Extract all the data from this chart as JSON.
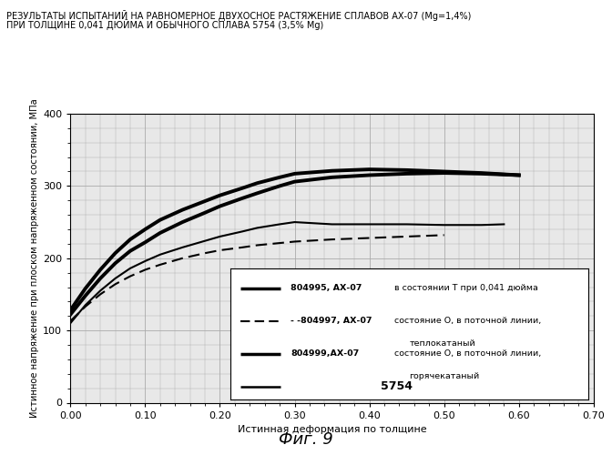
{
  "title_line1": "РЕЗУЛЬТАТЫ ИСПЫТАНИЙ НА РАВНОМЕРНОЕ ДВУХОСНОЕ РАСТЯЖЕНИЕ СПЛАВОВ АХ-07 (Mg=1,4%)",
  "title_line2": "ПРИ ТОЛЩИНЕ 0,041 ДЮЙМА И ОБЫЧНОГО СПЛАВА 5754 (3,5% Mg)",
  "xlabel": "Истинная деформация по толщине",
  "ylabel": "Истинное напряжение при плоском напряженном состоянии, МПа",
  "figcaption": "Фиг. 9",
  "xlim": [
    0.0,
    0.7
  ],
  "ylim": [
    0,
    400
  ],
  "xticks": [
    0.0,
    0.1,
    0.2,
    0.3,
    0.4,
    0.5,
    0.6,
    0.7
  ],
  "yticks": [
    0,
    100,
    200,
    300,
    400
  ],
  "bg_color": "#e8e8e8",
  "grid_color": "#aaaaaa",
  "curve1_x": [
    0.0,
    0.02,
    0.04,
    0.06,
    0.08,
    0.1,
    0.12,
    0.15,
    0.18,
    0.2,
    0.23,
    0.25,
    0.28,
    0.3,
    0.35,
    0.4,
    0.45,
    0.5,
    0.55,
    0.6
  ],
  "curve1_y": [
    122,
    148,
    172,
    193,
    210,
    222,
    235,
    250,
    263,
    272,
    283,
    290,
    300,
    306,
    312,
    315,
    317,
    318,
    317,
    315
  ],
  "curve2_x": [
    0.0,
    0.02,
    0.04,
    0.06,
    0.08,
    0.1,
    0.12,
    0.15,
    0.18,
    0.2,
    0.23,
    0.25,
    0.28,
    0.3,
    0.35,
    0.4,
    0.45,
    0.5
  ],
  "curve2_y": [
    113,
    133,
    150,
    164,
    175,
    184,
    191,
    200,
    207,
    211,
    215,
    218,
    221,
    223,
    226,
    228,
    230,
    232
  ],
  "curve3_x": [
    0.0,
    0.02,
    0.04,
    0.06,
    0.08,
    0.1,
    0.12,
    0.15,
    0.18,
    0.2,
    0.23,
    0.25,
    0.28,
    0.3,
    0.35,
    0.4,
    0.45,
    0.5,
    0.55,
    0.6
  ],
  "curve3_y": [
    128,
    158,
    184,
    207,
    226,
    240,
    253,
    267,
    279,
    287,
    297,
    304,
    312,
    317,
    321,
    323,
    322,
    320,
    318,
    315
  ],
  "curve4_x": [
    0.0,
    0.02,
    0.04,
    0.06,
    0.08,
    0.1,
    0.12,
    0.15,
    0.18,
    0.2,
    0.23,
    0.25,
    0.28,
    0.3,
    0.35,
    0.4,
    0.45,
    0.5,
    0.55,
    0.58
  ],
  "curve4_y": [
    110,
    135,
    155,
    172,
    186,
    196,
    205,
    215,
    224,
    230,
    237,
    242,
    247,
    250,
    247,
    247,
    247,
    246,
    246,
    247
  ],
  "legend_label1": "804995, АХ-07",
  "legend_text1": " в состоянии Т при 0,041 дюйма",
  "legend_label2": "- - -804997, АХ-07",
  "legend_text2": " состояние О, в поточной линии,",
  "legend_text2b": "теплокатаный",
  "legend_label3": "804999,АХ-07",
  "legend_text3": " состояние О, в поточной линии,",
  "legend_text3b": "горячекатаный",
  "legend_label4": "5754"
}
